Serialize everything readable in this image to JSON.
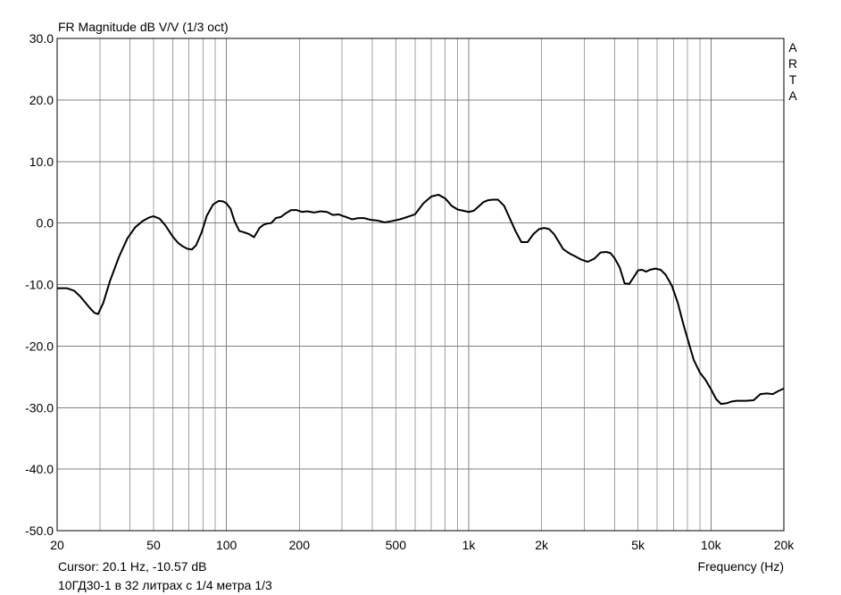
{
  "window": {
    "title": "FR Magnitude dB V/V (1/3 oct)",
    "brand_letters": [
      "A",
      "R",
      "T",
      "A"
    ],
    "cursor_readout": "Cursor: 20.1 Hz, -10.57 dB",
    "caption": "10ГД30-1 в 32 литрах с 1/4 метра 1/3"
  },
  "chart_data": {
    "type": "line",
    "title": "FR Magnitude dB V/V (1/3 oct)",
    "xlabel": "Frequency (Hz)",
    "ylabel": "",
    "xscale": "log",
    "xlim": [
      20,
      20000
    ],
    "ylim": [
      -50,
      30
    ],
    "grid": true,
    "legend": "none",
    "x_ticks": [
      {
        "value": 20,
        "label": "20"
      },
      {
        "value": 50,
        "label": "50"
      },
      {
        "value": 100,
        "label": "100"
      },
      {
        "value": 200,
        "label": "200"
      },
      {
        "value": 500,
        "label": "500"
      },
      {
        "value": 1000,
        "label": "1k"
      },
      {
        "value": 2000,
        "label": "2k"
      },
      {
        "value": 5000,
        "label": "5k"
      },
      {
        "value": 10000,
        "label": "10k"
      },
      {
        "value": 20000,
        "label": "20k"
      }
    ],
    "y_ticks": [
      {
        "value": 30,
        "label": "30.0"
      },
      {
        "value": 20,
        "label": "20.0"
      },
      {
        "value": 10,
        "label": "10.0"
      },
      {
        "value": 0,
        "label": "0.0"
      },
      {
        "value": -10,
        "label": "-10.0"
      },
      {
        "value": -20,
        "label": "-20.0"
      },
      {
        "value": -30,
        "label": "-30.0"
      },
      {
        "value": -40,
        "label": "-40.0"
      },
      {
        "value": -50,
        "label": "-50.0"
      }
    ],
    "colors": {
      "line": "#000000",
      "grid": "#a0a0a0",
      "background": "#ffffff"
    },
    "series": [
      {
        "x": [
          20,
          22,
          23.5,
          25,
          27,
          28.5,
          29.5,
          31,
          33,
          36,
          39,
          42,
          45,
          48,
          50,
          53,
          56,
          60,
          63,
          66,
          69,
          72,
          75,
          79,
          83,
          88,
          93,
          97,
          100,
          104,
          108,
          113,
          118,
          124,
          130,
          137,
          142,
          147,
          153,
          160,
          168,
          176,
          185,
          195,
          205,
          215,
          230,
          245,
          260,
          275,
          290,
          310,
          330,
          350,
          370,
          395,
          420,
          450,
          480,
          520,
          560,
          600,
          650,
          700,
          750,
          800,
          850,
          900,
          950,
          1000,
          1050,
          1100,
          1150,
          1200,
          1260,
          1320,
          1400,
          1480,
          1560,
          1650,
          1750,
          1850,
          1950,
          2050,
          2150,
          2250,
          2350,
          2450,
          2550,
          2650,
          2750,
          2900,
          3100,
          3300,
          3500,
          3700,
          3850,
          4000,
          4200,
          4400,
          4600,
          4800,
          5000,
          5200,
          5400,
          5600,
          5900,
          6200,
          6500,
          6900,
          7300,
          7700,
          8100,
          8500,
          9000,
          9500,
          10000,
          10500,
          11000,
          11600,
          12200,
          12800,
          13400,
          14000,
          15000,
          16000,
          17000,
          18000,
          19000,
          20000
        ],
        "y": [
          -10.6,
          -10.6,
          -11.0,
          -12.0,
          -13.6,
          -14.6,
          -14.8,
          -13.0,
          -9.5,
          -5.5,
          -2.5,
          -0.7,
          0.3,
          0.9,
          1.1,
          0.7,
          -0.4,
          -2.2,
          -3.2,
          -3.8,
          -4.2,
          -4.3,
          -3.6,
          -1.5,
          1.2,
          3.0,
          3.6,
          3.5,
          3.2,
          2.3,
          0.3,
          -1.3,
          -1.5,
          -1.8,
          -2.3,
          -0.8,
          -0.3,
          -0.1,
          0.0,
          0.8,
          1.0,
          1.6,
          2.1,
          2.1,
          1.8,
          1.9,
          1.7,
          1.9,
          1.8,
          1.3,
          1.4,
          1.0,
          0.6,
          0.8,
          0.8,
          0.5,
          0.4,
          0.1,
          0.3,
          0.6,
          1.0,
          1.4,
          3.2,
          4.3,
          4.6,
          4.0,
          2.8,
          2.2,
          2.0,
          1.8,
          2.0,
          2.7,
          3.4,
          3.7,
          3.8,
          3.8,
          2.8,
          0.7,
          -1.3,
          -3.1,
          -3.1,
          -1.8,
          -1.0,
          -0.8,
          -1.0,
          -1.8,
          -3.0,
          -4.2,
          -4.7,
          -5.1,
          -5.4,
          -5.9,
          -6.3,
          -5.8,
          -4.8,
          -4.7,
          -4.9,
          -5.7,
          -7.2,
          -9.8,
          -9.9,
          -8.8,
          -7.7,
          -7.6,
          -7.9,
          -7.6,
          -7.4,
          -7.6,
          -8.4,
          -10.2,
          -13.0,
          -16.5,
          -19.5,
          -22.3,
          -24.3,
          -25.5,
          -27.0,
          -28.6,
          -29.4,
          -29.3,
          -29.0,
          -28.9,
          -28.9,
          -28.9,
          -28.8,
          -27.8,
          -27.7,
          -27.8,
          -27.3,
          -26.9
        ]
      }
    ]
  }
}
